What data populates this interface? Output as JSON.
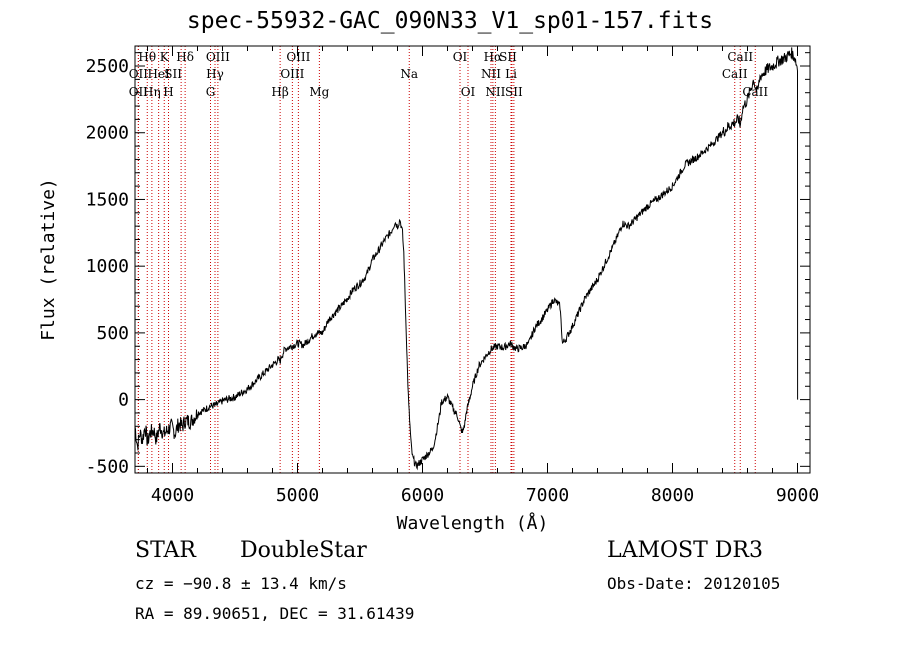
{
  "header": {
    "title": "spec-55932-GAC_090N33_V1_sp01-157.fits"
  },
  "info": {
    "object_class": "STAR",
    "object_subclass": "DoubleStar",
    "survey": "LAMOST DR3",
    "cz": "cz = −90.8 ± 13.4 km/s",
    "obs_date": "Obs-Date: 20120105",
    "radec": "RA =  89.90651, DEC =  31.61439"
  },
  "colors": {
    "line": "#000000",
    "marker": "#cc0000",
    "background": "#ffffff"
  },
  "chart_data": {
    "type": "line",
    "title": "spec-55932-GAC_090N33_V1_sp01-157.fits",
    "xlabel": "Wavelength (Å)",
    "ylabel": "Flux (relative)",
    "xlim": [
      3700,
      9100
    ],
    "ylim": [
      -550,
      2650
    ],
    "xticks": [
      4000,
      5000,
      6000,
      7000,
      8000,
      9000
    ],
    "yticks": [
      -500,
      0,
      500,
      1000,
      1500,
      2000,
      2500
    ],
    "series": [
      {
        "name": "flux",
        "x": [
          3700,
          3720,
          3740,
          3760,
          3780,
          3800,
          3820,
          3850,
          3870,
          3900,
          3930,
          3960,
          3990,
          4020,
          4050,
          4080,
          4100,
          4150,
          4200,
          4250,
          4300,
          4350,
          4400,
          4500,
          4600,
          4700,
          4800,
          4850,
          4860,
          4870,
          4900,
          4950,
          5000,
          5050,
          5100,
          5150,
          5200,
          5250,
          5300,
          5350,
          5400,
          5450,
          5500,
          5550,
          5600,
          5650,
          5700,
          5750,
          5780,
          5800,
          5820,
          5840,
          5850,
          5860,
          5870,
          5880,
          5890,
          5900,
          5910,
          5920,
          5950,
          6000,
          6050,
          6080,
          6100,
          6120,
          6140,
          6150,
          6200,
          6250,
          6280,
          6300,
          6320,
          6340,
          6350,
          6400,
          6450,
          6500,
          6550,
          6600,
          6650,
          6700,
          6750,
          6800,
          6850,
          6900,
          6950,
          7000,
          7050,
          7100,
          7120,
          7150,
          7200,
          7300,
          7400,
          7500,
          7550,
          7600,
          7650,
          7700,
          7800,
          7900,
          8000,
          8100,
          8200,
          8300,
          8400,
          8450,
          8500,
          8530,
          8540,
          8560,
          8600,
          8650,
          8660,
          8680,
          8700,
          8750,
          8800,
          8850,
          8900,
          8950,
          8980,
          9000,
          9001
        ],
        "values": [
          -200,
          -350,
          -250,
          -300,
          -200,
          -320,
          -250,
          -230,
          -300,
          -200,
          -260,
          -230,
          -200,
          -250,
          -180,
          -200,
          -160,
          -160,
          -100,
          -80,
          -50,
          -40,
          -10,
          20,
          80,
          170,
          260,
          300,
          280,
          320,
          380,
          400,
          420,
          410,
          460,
          500,
          500,
          600,
          650,
          700,
          760,
          830,
          870,
          930,
          1050,
          1120,
          1200,
          1260,
          1330,
          1300,
          1350,
          1250,
          1100,
          800,
          500,
          200,
          -50,
          -200,
          -350,
          -430,
          -500,
          -450,
          -400,
          -370,
          -300,
          -200,
          -100,
          -20,
          20,
          -80,
          -120,
          -200,
          -250,
          -170,
          -100,
          100,
          250,
          320,
          380,
          400,
          390,
          420,
          380,
          390,
          420,
          540,
          600,
          670,
          750,
          700,
          420,
          460,
          550,
          760,
          900,
          1100,
          1200,
          1320,
          1300,
          1350,
          1450,
          1520,
          1600,
          1760,
          1820,
          1900,
          2000,
          2050,
          2080,
          2100,
          2050,
          2180,
          2250,
          2400,
          2350,
          2300,
          2420,
          2470,
          2500,
          2540,
          2560,
          2600,
          2560,
          2480,
          0
        ]
      }
    ],
    "lines": [
      {
        "label": "Hθ",
        "x": 3798,
        "row": 0,
        "dx": 0
      },
      {
        "label": "OII",
        "x": 3727,
        "row": 1,
        "dx": 0
      },
      {
        "label": "OII",
        "x": 3727,
        "row": 2,
        "dx": 0
      },
      {
        "label": "Hη",
        "x": 3835,
        "row": 2,
        "dx": 0
      },
      {
        "label": "K",
        "x": 3934,
        "row": 0,
        "dx": 0
      },
      {
        "label": "HeI",
        "x": 3889,
        "row": 1,
        "dx": 0
      },
      {
        "label": "H",
        "x": 3968,
        "row": 2,
        "dx": 0
      },
      {
        "label": "SII",
        "x": 4069,
        "row": 1,
        "dx": -8
      },
      {
        "label": "Hδ",
        "x": 4101,
        "row": 0,
        "dx": 0
      },
      {
        "label": "OIII",
        "x": 4363,
        "row": 0,
        "dx": 0
      },
      {
        "label": "Hγ",
        "x": 4340,
        "row": 1,
        "dx": 0
      },
      {
        "label": "G",
        "x": 4304,
        "row": 2,
        "dx": 0
      },
      {
        "label": "Hβ",
        "x": 4861,
        "row": 2,
        "dx": 0
      },
      {
        "label": "OIII",
        "x": 5007,
        "row": 0,
        "dx": 0
      },
      {
        "label": "OIII",
        "x": 4959,
        "row": 1,
        "dx": 0
      },
      {
        "label": "Mg",
        "x": 5175,
        "row": 2,
        "dx": 0
      },
      {
        "label": "Na",
        "x": 5894,
        "row": 1,
        "dx": 0
      },
      {
        "label": "OI",
        "x": 6300,
        "row": 0,
        "dx": 0
      },
      {
        "label": "OI",
        "x": 6364,
        "row": 2,
        "dx": 0
      },
      {
        "label": "Hα",
        "x": 6563,
        "row": 0,
        "dx": 0
      },
      {
        "label": "SII",
        "x": 6716,
        "row": 0,
        "dx": -4
      },
      {
        "label": "NII",
        "x": 6548,
        "row": 1,
        "dx": 0
      },
      {
        "label": "Li",
        "x": 6708,
        "row": 1,
        "dx": 0
      },
      {
        "label": "NII",
        "x": 6583,
        "row": 2,
        "dx": 0
      },
      {
        "label": "SII",
        "x": 6731,
        "row": 2,
        "dx": 0
      },
      {
        "label": "CaII",
        "x": 8542,
        "row": 0,
        "dx": 0
      },
      {
        "label": "CaII",
        "x": 8498,
        "row": 1,
        "dx": 0
      },
      {
        "label": "CaII",
        "x": 8662,
        "row": 2,
        "dx": 0
      }
    ]
  }
}
